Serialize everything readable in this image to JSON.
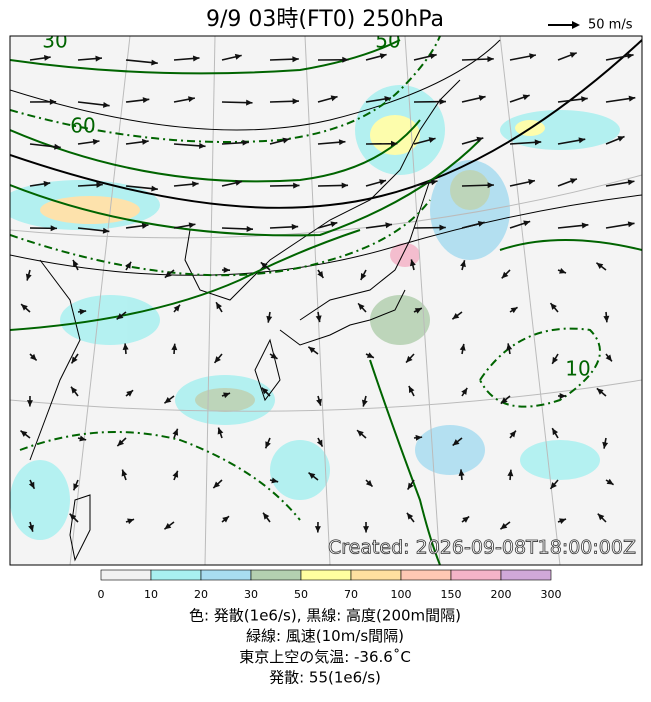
{
  "header": {
    "title": "9/9  03時(FT0)     250hPa",
    "wind_legend": "50 m/s"
  },
  "map": {
    "contour_labels": [
      "30",
      "60",
      "50",
      "10"
    ],
    "stamp": "Created: 2026-09-08T18:00:00Z"
  },
  "colorbar": {
    "ticks": [
      "0",
      "10",
      "20",
      "30",
      "50",
      "70",
      "100",
      "150",
      "200",
      "300"
    ],
    "colors": [
      "#f2f2f2",
      "#a8f0f0",
      "#a8dcf0",
      "#b4d0b0",
      "#ffffa0",
      "#ffe0a0",
      "#ffc8b4",
      "#f4b4c8",
      "#d0a8d8"
    ]
  },
  "caption": [
    "色: 発散(1e6/s),  黒線: 高度(200m間隔)",
    "緑線: 風速(10m/s間隔)",
    "東京上空の気温: -36.6˚C",
    "発散: 55(1e6/s)"
  ]
}
